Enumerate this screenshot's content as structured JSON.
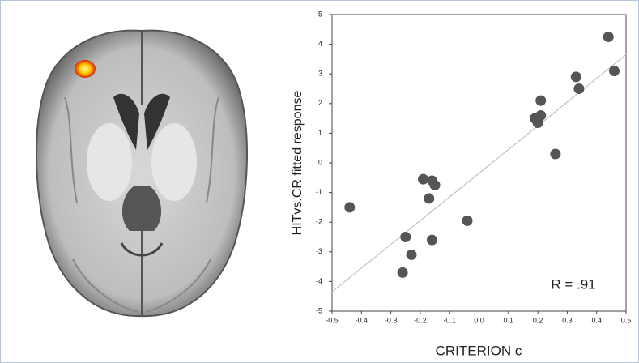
{
  "chart_data": {
    "type": "scatter",
    "x_label": "CRITERION c",
    "y_label": "HITvs.CR fitted response",
    "annotation": "R = .91",
    "x": [
      -0.44,
      -0.25,
      -0.23,
      -0.26,
      -0.16,
      -0.19,
      -0.16,
      -0.15,
      -0.17,
      -0.04,
      0.19,
      0.21,
      0.2,
      0.21,
      0.26,
      0.33,
      0.34,
      0.44,
      0.46
    ],
    "values": [
      -1.5,
      -2.5,
      -3.1,
      -3.7,
      -2.6,
      -0.55,
      -0.6,
      -0.75,
      -1.2,
      -1.95,
      1.5,
      1.6,
      1.35,
      2.1,
      0.3,
      2.9,
      2.5,
      4.25,
      3.1
    ],
    "color": "#555555",
    "xlim": [
      -0.5,
      0.5
    ],
    "ylim": [
      -5,
      5
    ],
    "xticks": [
      -0.5,
      -0.4,
      -0.3,
      -0.2,
      -0.1,
      {
        "value": 0,
        "label": "0.0"
      },
      0.1,
      0.2,
      0.3,
      0.4,
      0.5
    ],
    "yticks": [
      -5,
      -4,
      -3,
      -2,
      -1,
      0,
      1,
      2,
      3,
      4,
      5
    ],
    "fit_line": {
      "x": [
        -0.5,
        0.5
      ],
      "y": [
        -4.35,
        3.65
      ],
      "color": "#c0c0c0"
    }
  }
}
